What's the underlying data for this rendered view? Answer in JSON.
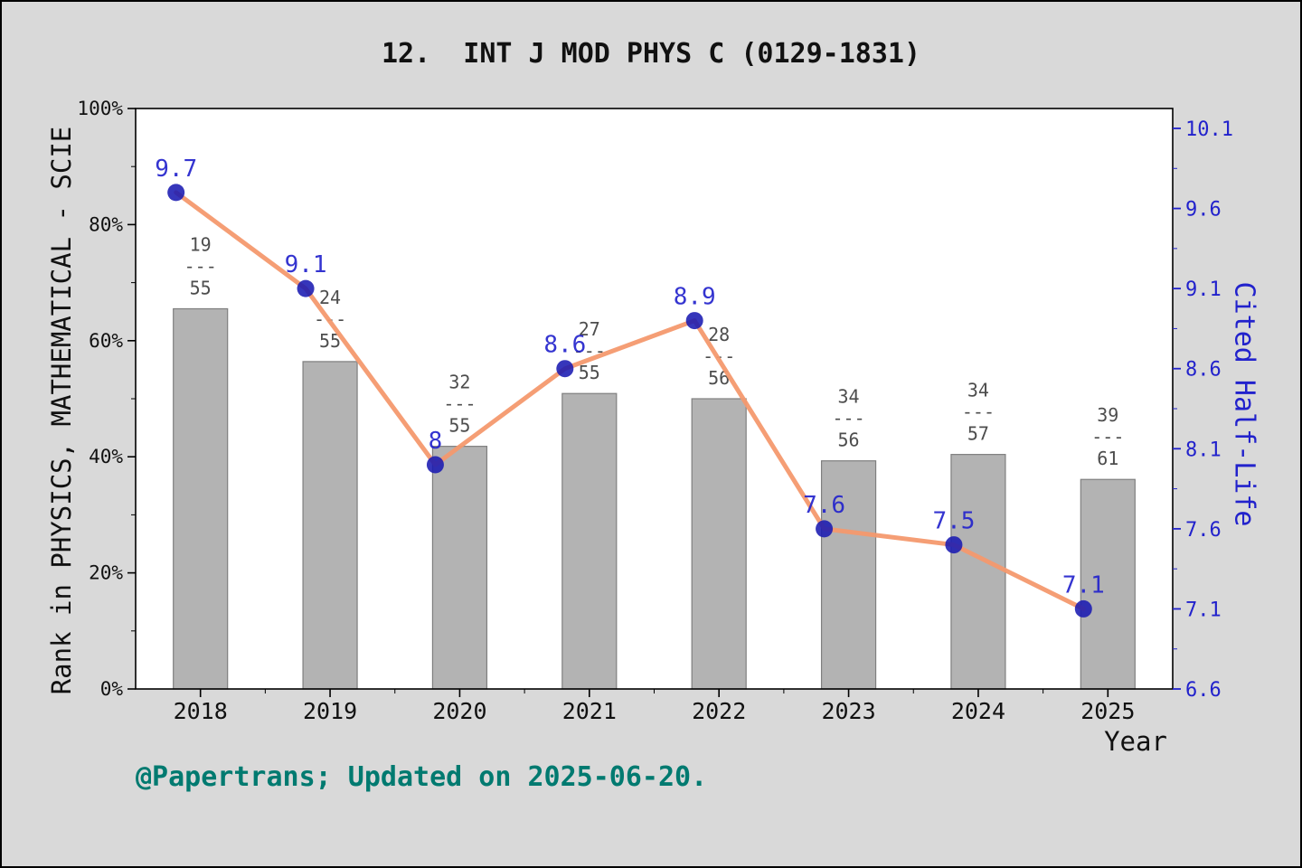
{
  "footer": {
    "text": "@Papertrans; Updated on 2025-06-20."
  },
  "chart_data": {
    "type": "bar+line",
    "title": "12.  INT J MOD PHYS C (0129-1831)",
    "xlabel": "Year",
    "ylabel_left": "Rank in PHYSICS, MATHEMATICAL - SCIE",
    "ylabel_right": "Cited Half-Life",
    "categories": [
      "2018",
      "2019",
      "2020",
      "2021",
      "2022",
      "2023",
      "2024",
      "2025"
    ],
    "left_axis": {
      "ticks": [
        "0%",
        "20%",
        "40%",
        "60%",
        "80%",
        "100%"
      ],
      "min": 0,
      "max": 100
    },
    "right_axis": {
      "ticks": [
        "6.6",
        "7.1",
        "7.6",
        "8.1",
        "8.6",
        "9.1",
        "9.6",
        "10.1"
      ],
      "min": 6.6,
      "max": 10.1
    },
    "legend": "none",
    "grid": "off",
    "series": [
      {
        "name": "Rank in category (bars, left axis)",
        "type": "bar",
        "fractions": [
          [
            19,
            55
          ],
          [
            24,
            55
          ],
          [
            32,
            55
          ],
          [
            27,
            55
          ],
          [
            28,
            56
          ],
          [
            34,
            56
          ],
          [
            34,
            57
          ],
          [
            39,
            61
          ]
        ],
        "values_pct": [
          65.5,
          56.4,
          41.8,
          50.9,
          50.0,
          39.3,
          40.4,
          36.1
        ]
      },
      {
        "name": "Cited Half-Life (line, right axis)",
        "type": "line",
        "values": [
          9.7,
          9.1,
          8.0,
          8.6,
          8.9,
          7.6,
          7.5,
          7.1
        ],
        "labels": [
          "9.7",
          "9.1",
          "8",
          "8.6",
          "8.9",
          "7.6",
          "7.5",
          "7.1"
        ]
      }
    ],
    "colors": {
      "background": "#d9d9d9",
      "plot_bg": "#ffffff",
      "axis": "#000000",
      "bar_fill": "#b3b3b3",
      "bar_edge": "#7f7f7f",
      "line_orange": "#f4996e",
      "marker_blue": "#1a1ab2",
      "value_label_blue": "#2323cc",
      "right_axis_blue": "#2222cc",
      "fraction_gray": "#4d4d4d",
      "footer_teal": "#007a70",
      "title_color": "#111111"
    }
  }
}
